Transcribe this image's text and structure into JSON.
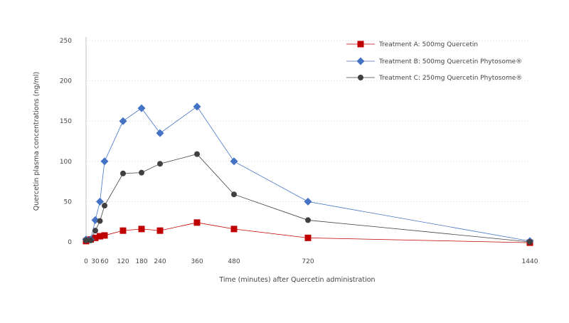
{
  "chart_data": {
    "type": "line",
    "title": "",
    "xlabel": "Time (minutes) after Quercetin administration",
    "ylabel": "Quercetin plasma concentrations (ng/ml)",
    "xlim": [
      0,
      1440
    ],
    "ylim": [
      0,
      250
    ],
    "x_ticks": [
      0,
      30,
      60,
      120,
      180,
      240,
      360,
      480,
      720,
      1440
    ],
    "y_ticks": [
      0,
      50,
      100,
      150,
      200,
      250
    ],
    "grid": "horizontal",
    "legend": "top-right",
    "series": [
      {
        "name": "Treatment A: 500mg Quercetin",
        "color": "#c00000",
        "marker": "square",
        "x": [
          0,
          15,
          30,
          45,
          60,
          120,
          180,
          240,
          360,
          480,
          720,
          1440
        ],
        "y": [
          1,
          3,
          5,
          7,
          8,
          14,
          16,
          14,
          24,
          16,
          5,
          -1
        ]
      },
      {
        "name": "Treatment B: 500mg Quercetin Phytosome®",
        "color": "#4472c4",
        "marker": "diamond",
        "x": [
          0,
          15,
          30,
          45,
          60,
          120,
          180,
          240,
          360,
          480,
          720,
          1440
        ],
        "y": [
          3,
          3,
          27,
          50,
          100,
          150,
          166,
          135,
          168,
          100,
          50,
          1
        ]
      },
      {
        "name": "Treatment C: 250mg Quercetin Phytosome®",
        "color": "#404040",
        "marker": "circle",
        "x": [
          0,
          15,
          30,
          45,
          60,
          120,
          180,
          240,
          360,
          480,
          720,
          1440
        ],
        "y": [
          2,
          2,
          14,
          26,
          45,
          85,
          86,
          97,
          109,
          59,
          27,
          0
        ]
      }
    ]
  }
}
